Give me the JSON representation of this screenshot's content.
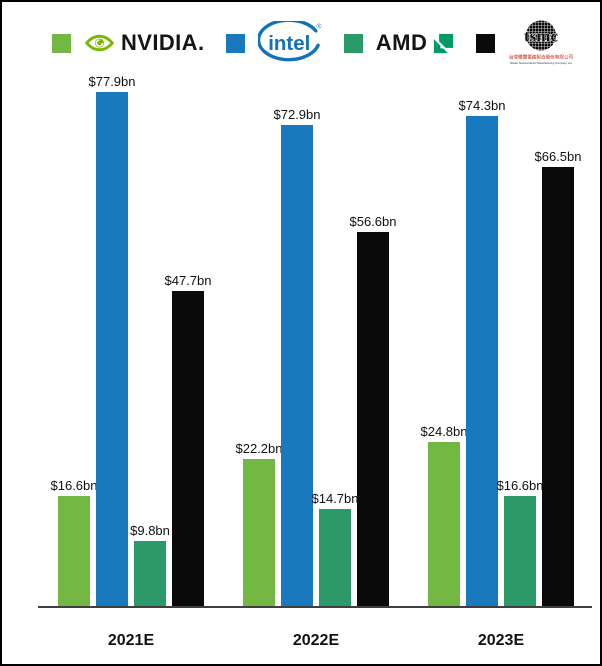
{
  "legend": {
    "items": [
      {
        "company": "NVIDIA",
        "swatch": "#72B843",
        "logo_text": "NVIDIA."
      },
      {
        "company": "Intel",
        "swatch": "#1979BF",
        "logo_text": "intel",
        "registered_mark": "®"
      },
      {
        "company": "AMD",
        "swatch": "#2B9A68",
        "logo_text": "AMD"
      },
      {
        "company": "TSMC",
        "swatch": "#0A0A0A",
        "logo_text": "tsmc",
        "logo_subtext": "台灣積體電路製造股份有限公司",
        "logo_subtext_en": "Taiwan Semiconductor Manufacturing Company, Ltd."
      }
    ]
  },
  "chart_data": {
    "type": "bar",
    "title": "",
    "categories": [
      "2021E",
      "2022E",
      "2023E"
    ],
    "series": [
      {
        "name": "NVIDIA",
        "color": "#72B843",
        "values": [
          16.6,
          22.2,
          24.8
        ],
        "labels": [
          "$16.6bn",
          "$22.2bn",
          "$24.8bn"
        ]
      },
      {
        "name": "Intel",
        "color": "#1979BF",
        "values": [
          77.9,
          72.9,
          74.3
        ],
        "labels": [
          "$77.9bn",
          "$72.9bn",
          "$74.3bn"
        ]
      },
      {
        "name": "AMD",
        "color": "#2B9A68",
        "values": [
          9.8,
          14.7,
          16.6
        ],
        "labels": [
          "$9.8bn",
          "$14.7bn",
          "$16.6bn"
        ]
      },
      {
        "name": "TSMC",
        "color": "#0A0A0A",
        "values": [
          47.7,
          56.6,
          66.5
        ],
        "labels": [
          "$47.7bn",
          "$56.6bn",
          "$66.5bn"
        ]
      }
    ],
    "ylim": [
      0,
      80
    ],
    "unit_suffix": "bn",
    "currency_prefix": "$",
    "grid": false,
    "legend_position": "top",
    "value_labels": "above-bars"
  }
}
